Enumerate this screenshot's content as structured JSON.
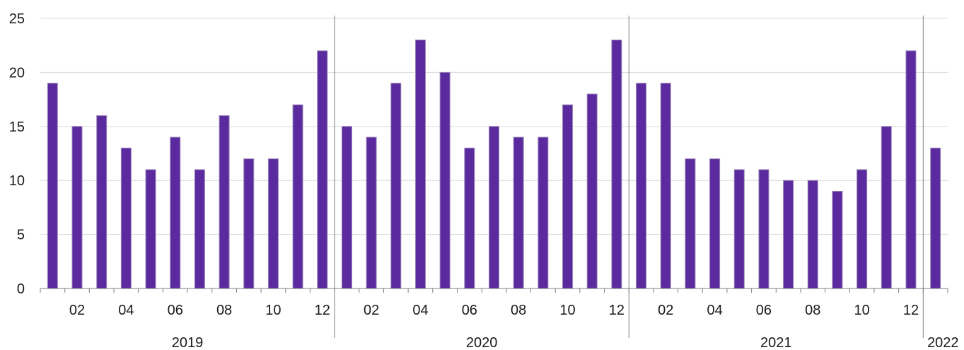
{
  "chart_data": {
    "type": "bar",
    "title": "",
    "xlabel": "",
    "ylabel": "",
    "ylim": [
      0,
      25
    ],
    "yticks": [
      0,
      5,
      10,
      15,
      20,
      25
    ],
    "grid": true,
    "bar_color": "#5b2a9e",
    "bar_edge_color": "#9a86b8",
    "categories": [
      "2019-01",
      "2019-02",
      "2019-03",
      "2019-04",
      "2019-05",
      "2019-06",
      "2019-07",
      "2019-08",
      "2019-09",
      "2019-10",
      "2019-11",
      "2019-12",
      "2020-01",
      "2020-02",
      "2020-03",
      "2020-04",
      "2020-05",
      "2020-06",
      "2020-07",
      "2020-08",
      "2020-09",
      "2020-10",
      "2020-11",
      "2020-12",
      "2021-01",
      "2021-02",
      "2021-03",
      "2021-04",
      "2021-05",
      "2021-06",
      "2021-07",
      "2021-08",
      "2021-09",
      "2021-10",
      "2021-11",
      "2021-12",
      "2022-01"
    ],
    "values": [
      19,
      15,
      16,
      13,
      11,
      14,
      11,
      16,
      12,
      12,
      17,
      22,
      15,
      14,
      19,
      23,
      20,
      13,
      15,
      14,
      14,
      17,
      18,
      23,
      19,
      19,
      12,
      12,
      11,
      11,
      10,
      10,
      9,
      11,
      15,
      22,
      13
    ],
    "month_tick_labels": [
      "",
      "02",
      "",
      "04",
      "",
      "06",
      "",
      "08",
      "",
      "10",
      "",
      "12"
    ],
    "year_groups": [
      {
        "label": "2019",
        "months": 12
      },
      {
        "label": "2020",
        "months": 12
      },
      {
        "label": "2021",
        "months": 12
      },
      {
        "label": "2022",
        "months": 1
      }
    ]
  }
}
